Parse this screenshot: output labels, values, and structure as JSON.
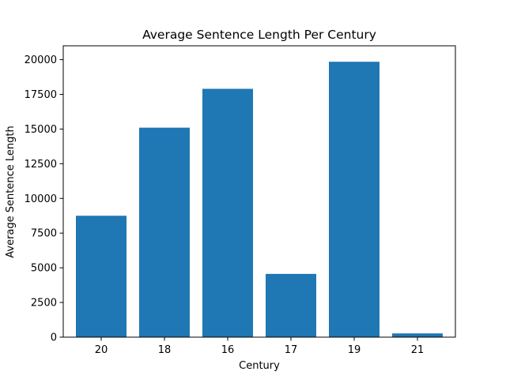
{
  "chart_data": {
    "type": "bar",
    "title": "Average Sentence Length Per Century",
    "xlabel": "Century",
    "ylabel": "Average Sentence Length",
    "categories": [
      "20",
      "18",
      "16",
      "17",
      "19",
      "21"
    ],
    "values": [
      8750,
      15100,
      17900,
      4560,
      19850,
      270
    ],
    "ylim": [
      0,
      21000
    ],
    "yticks": [
      0,
      2500,
      5000,
      7500,
      10000,
      12500,
      15000,
      17500,
      20000
    ],
    "bar_color": "#1f77b4",
    "grid": false,
    "legend": "none"
  }
}
